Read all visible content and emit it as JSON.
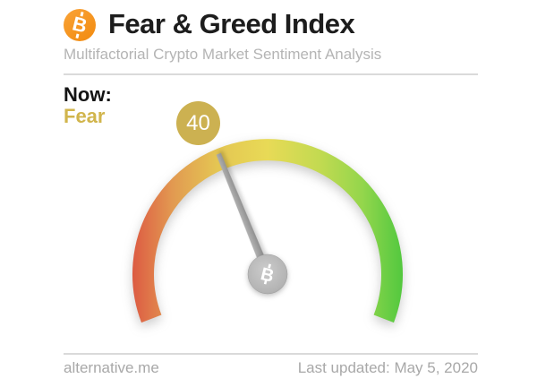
{
  "header": {
    "title": "Fear & Greed Index",
    "subtitle": "Multifactorial Crypto Market Sentiment Analysis"
  },
  "now": {
    "label": "Now:",
    "classification": "Fear"
  },
  "gauge": {
    "value": 40,
    "min": 0,
    "max": 100,
    "value_label": "40"
  },
  "footer": {
    "site": "alternative.me",
    "last_updated": "Last updated: May 5, 2020"
  },
  "icons": {
    "header_logo": "bitcoin-icon",
    "hub_icon": "bitcoin-icon",
    "bitcoin_glyph": "B"
  },
  "colors": {
    "bitcoin_orange": "#f7931a",
    "gold_accent": "#ccb151",
    "gold_text": "#d1b54c",
    "needle_gray": "#9c9c9c",
    "hub_gray": "#b3b3b3",
    "text_dark": "#1d1d1d",
    "muted_gray": "#b4b4b4",
    "footer_gray": "#a8a8a8",
    "divider_gray": "#dadada",
    "arc_gradient": [
      "#dc5b42",
      "#df7048",
      "#e29a51",
      "#e4c553",
      "#e8da56",
      "#c3da51",
      "#94d64c",
      "#63cc43",
      "#53c83e"
    ]
  },
  "chart_data": {
    "type": "gauge",
    "title": "Fear & Greed Index",
    "subtitle": "Multifactorial Crypto Market Sentiment Analysis",
    "value": 40,
    "min": 0,
    "max": 100,
    "classification": "Fear",
    "scale": [
      {
        "position": "min (0, extreme fear)",
        "color": "#dc5b42"
      },
      {
        "position": "middle (50, neutral)",
        "color": "#e8da56"
      },
      {
        "position": "max (100, extreme greed)",
        "color": "#53c83e"
      }
    ],
    "annotations": [
      "Now: Fear",
      "40"
    ],
    "source": "alternative.me",
    "last_updated": "May 5, 2020",
    "layout": {
      "start_angle_deg": 201,
      "sweep_deg": 222,
      "arc_thickness_px": 24,
      "legend": "none",
      "grid": "off"
    }
  }
}
